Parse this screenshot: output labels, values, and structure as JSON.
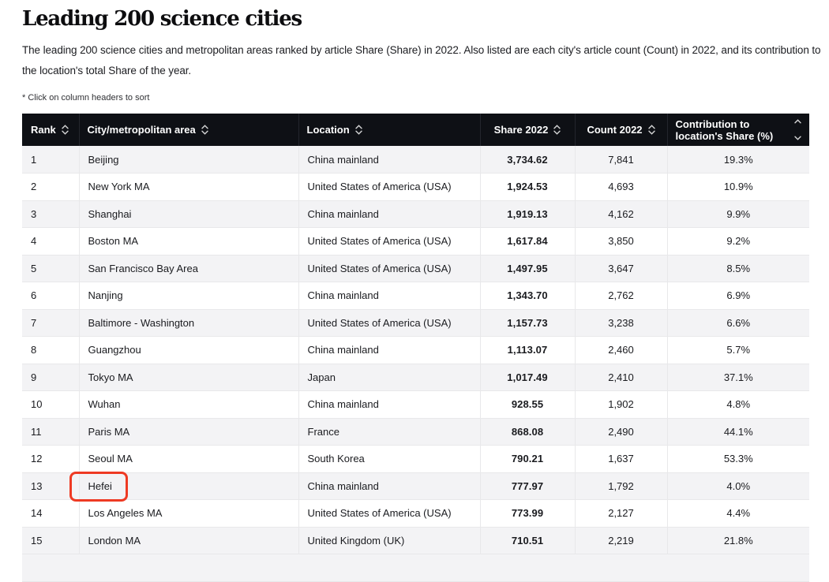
{
  "page": {
    "title": "Leading 200 science cities",
    "description": "The leading 200 science cities and metropolitan areas ranked by article Share (Share) in 2022. Also listed are each city's article count (Count) in 2022, and its contribution to the location's total Share of the year.",
    "footnote": "* Click on column headers to sort"
  },
  "colors": {
    "header_bg": "#0e1015",
    "row_stripe": "#f3f3f5",
    "grid_line": "#e8e8ea",
    "accent_red": "#ee3a23",
    "text": "#1a1b1f"
  },
  "table": {
    "columns": [
      {
        "key": "rank",
        "label": "Rank",
        "align": "left",
        "sort_icon": "sort-chevrons"
      },
      {
        "key": "city",
        "label": "City/metropolitan area",
        "align": "left",
        "sort_icon": "sort-chevrons"
      },
      {
        "key": "location",
        "label": "Location",
        "align": "left",
        "sort_icon": "sort-chevrons"
      },
      {
        "key": "share",
        "label": "Share 2022",
        "align": "center",
        "sort_icon": "sort-chevrons"
      },
      {
        "key": "count",
        "label": "Count 2022",
        "align": "center",
        "sort_icon": "sort-chevrons"
      },
      {
        "key": "contribution",
        "label": "Contribution to location's Share (%)",
        "align": "center",
        "sort_icon": "sort-chevrons",
        "two_line": true
      }
    ],
    "rows": [
      {
        "rank": "1",
        "city": "Beijing",
        "location": "China mainland",
        "share": "3,734.62",
        "count": "7,841",
        "contribution": "19.3%"
      },
      {
        "rank": "2",
        "city": "New York MA",
        "location": "United States of America (USA)",
        "share": "1,924.53",
        "count": "4,693",
        "contribution": "10.9%"
      },
      {
        "rank": "3",
        "city": "Shanghai",
        "location": "China mainland",
        "share": "1,919.13",
        "count": "4,162",
        "contribution": "9.9%"
      },
      {
        "rank": "4",
        "city": "Boston MA",
        "location": "United States of America (USA)",
        "share": "1,617.84",
        "count": "3,850",
        "contribution": "9.2%"
      },
      {
        "rank": "5",
        "city": "San Francisco Bay Area",
        "location": "United States of America (USA)",
        "share": "1,497.95",
        "count": "3,647",
        "contribution": "8.5%"
      },
      {
        "rank": "6",
        "city": "Nanjing",
        "location": "China mainland",
        "share": "1,343.70",
        "count": "2,762",
        "contribution": "6.9%"
      },
      {
        "rank": "7",
        "city": "Baltimore - Washington",
        "location": "United States of America (USA)",
        "share": "1,157.73",
        "count": "3,238",
        "contribution": "6.6%"
      },
      {
        "rank": "8",
        "city": "Guangzhou",
        "location": "China mainland",
        "share": "1,113.07",
        "count": "2,460",
        "contribution": "5.7%"
      },
      {
        "rank": "9",
        "city": "Tokyo MA",
        "location": "Japan",
        "share": "1,017.49",
        "count": "2,410",
        "contribution": "37.1%"
      },
      {
        "rank": "10",
        "city": "Wuhan",
        "location": "China mainland",
        "share": "928.55",
        "count": "1,902",
        "contribution": "4.8%"
      },
      {
        "rank": "11",
        "city": "Paris MA",
        "location": "France",
        "share": "868.08",
        "count": "2,490",
        "contribution": "44.1%"
      },
      {
        "rank": "12",
        "city": "Seoul MA",
        "location": "South Korea",
        "share": "790.21",
        "count": "1,637",
        "contribution": "53.3%"
      },
      {
        "rank": "13",
        "city": "Hefei",
        "location": "China mainland",
        "share": "777.97",
        "count": "1,792",
        "contribution": "4.0%"
      },
      {
        "rank": "14",
        "city": "Los Angeles MA",
        "location": "United States of America (USA)",
        "share": "773.99",
        "count": "2,127",
        "contribution": "4.4%"
      },
      {
        "rank": "15",
        "city": "London MA",
        "location": "United Kingdom (UK)",
        "share": "710.51",
        "count": "2,219",
        "contribution": "21.8%"
      }
    ]
  },
  "annotation": {
    "highlighted_city": "Hefei",
    "color": "#ee3a23"
  }
}
